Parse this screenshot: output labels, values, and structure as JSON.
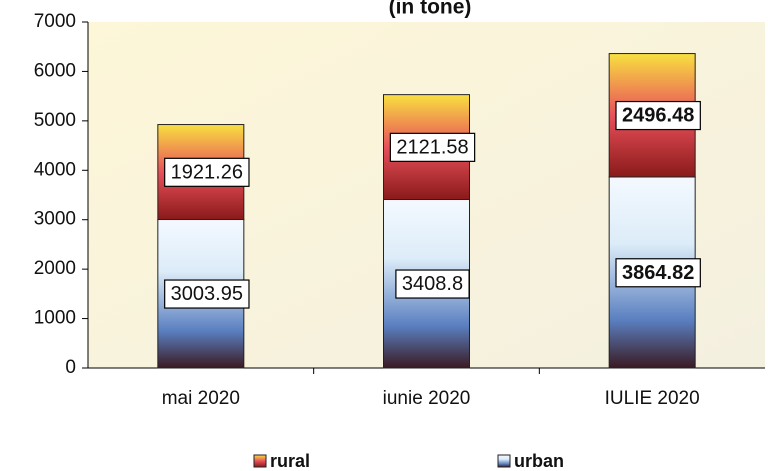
{
  "chart_data": {
    "type": "stacked_bar",
    "title": "(in tone)",
    "categories": [
      "mai 2020",
      "iunie 2020",
      "IULIE 2020"
    ],
    "series": [
      {
        "name": "urban",
        "color": "#dcecf8",
        "values": [
          3003.95,
          3408.8,
          3864.82
        ]
      },
      {
        "name": "rural",
        "color": "#e8505a",
        "values": [
          1921.26,
          2121.58,
          2496.48
        ]
      }
    ],
    "legend_order": [
      "rural",
      "urban"
    ],
    "ylim": [
      0,
      7000
    ],
    "yticks": [
      0,
      1000,
      2000,
      3000,
      4000,
      5000,
      6000,
      7000
    ]
  }
}
